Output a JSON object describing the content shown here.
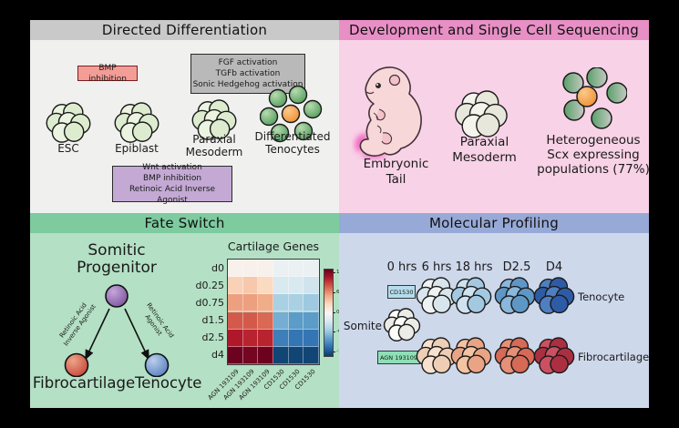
{
  "dd": {
    "title": "Directed Differentiation",
    "bmp_box": "BMP inhibition",
    "fgf_box": [
      "FGF activation",
      "TGFb activation",
      "Sonic Hedgehog activation"
    ],
    "wnt_box": [
      "Wnt activation",
      "BMP inhibition",
      "Retinoic Acid Inverse Agonist"
    ],
    "esc_label": "ESC",
    "epiblast_label": "Epiblast",
    "paraxial_line1": "Paraxial",
    "paraxial_line2": "Mesoderm",
    "tenocytes_line1": "Differentiated",
    "tenocytes_line2": "Tenocytes"
  },
  "dev": {
    "title": "Development and Single Cell Sequencing",
    "embryo_line1": "Embryonic",
    "embryo_line2": "Tail",
    "paraxial_line1": "Paraxial",
    "paraxial_line2": "Mesoderm",
    "het_line1": "Heterogeneous",
    "het_line2": "Scx expressing",
    "het_line3": "populations (77%)"
  },
  "fate": {
    "title": "Fate Switch",
    "progenitor_line1": "Somitic",
    "progenitor_line2": "Progenitor",
    "left_arrow_line1": "Retinoic Acid",
    "left_arrow_line2": "Inverse Agonist",
    "right_arrow_line1": "Retinoic Acid",
    "right_arrow_line2": "Agonist",
    "fibro_label": "Fibrocartilage",
    "teno_label": "Tenocyte"
  },
  "mol": {
    "title": "Molecular Profiling",
    "times": [
      "0 hrs",
      "6 hrs",
      "18 hrs",
      "D2.5",
      "D4"
    ],
    "cd_badge": "CD1530",
    "agn_badge": "AGN 193109",
    "somite_label": "Somite",
    "teno_label": "Tenocyte",
    "fibro_label": "Fibrocartilage"
  },
  "chart_data": {
    "type": "heatmap",
    "title": "Cartilage Genes",
    "rows": [
      "d0",
      "d0.25",
      "d0.75",
      "d1.5",
      "d2.5",
      "d4"
    ],
    "columns": [
      "AGN 193109",
      "AGN 193109",
      "AGN 193109",
      "CD1530",
      "CD1530",
      "CD1530"
    ],
    "values": [
      [
        0.5,
        0.5,
        0.5,
        -1,
        -1,
        -1
      ],
      [
        3,
        3.5,
        2.5,
        -2.5,
        -2.5,
        -3
      ],
      [
        5.5,
        5.5,
        5,
        -5,
        -5,
        -5.5
      ],
      [
        8,
        8,
        7.5,
        -7,
        -8,
        -8
      ],
      [
        10.5,
        10,
        10,
        -9.5,
        -10,
        -10
      ],
      [
        12.8,
        12.5,
        12.8,
        -12.5,
        -12.5,
        -12.5
      ]
    ],
    "vmin": -13,
    "vmax": 13,
    "colorbar_ticks": [
      12,
      6,
      0,
      -6,
      -12
    ],
    "colormap": "RdBu_r",
    "legend_position": "right"
  },
  "clusters": {
    "light_green": {
      "base": "#eaf4e0",
      "alt": "#ddeccf"
    },
    "cream": {
      "base": "#f4f4ec",
      "alt": "#e7e7db"
    },
    "white": {
      "base": "#fcfcfa",
      "alt": "#ebebe7"
    },
    "teno_1": {
      "base": "#eef2f3",
      "alt": "#d9e5ec"
    },
    "teno_2": {
      "base": "#cfe2ef",
      "alt": "#a3c9e1"
    },
    "teno_3": {
      "base": "#8ab7da",
      "alt": "#5e97c6"
    },
    "teno_4": {
      "base": "#4f7fc1",
      "alt": "#2e5ba6"
    },
    "fibro_1": {
      "base": "#f6e2cf",
      "alt": "#eeceb4"
    },
    "fibro_2": {
      "base": "#f3c3a2",
      "alt": "#e9a485"
    },
    "fibro_3": {
      "base": "#e69077",
      "alt": "#d66a56"
    },
    "fibro_4": {
      "base": "#cb5161",
      "alt": "#ab2f41"
    }
  },
  "colors": {
    "header_gray": "#c9c9c9",
    "panel_gray": "#f0f0ef",
    "header_pink": "#e88fc6",
    "panel_pink": "#f8d2e6",
    "header_green": "#7dcb9f",
    "panel_green": "#b4e0c5",
    "header_blue": "#97a9d7",
    "panel_blue": "#ced8eb",
    "bmp_box_bg": "#f29d96",
    "fgf_box_bg": "#b9b9b9",
    "wnt_box_bg": "#c3a9d4",
    "cd_badge_bg": "#b5dcec",
    "agn_badge_bg": "#8fdfb6",
    "scx_orange": "#ef9236",
    "tenocyte_green": "#579e60",
    "progenitor_purple": "#8a5fa8",
    "fibrocartilage_red": "#c84a3c",
    "tenocyte_blue": "#5c83c4",
    "tail_highlight": "#f23eb6"
  }
}
